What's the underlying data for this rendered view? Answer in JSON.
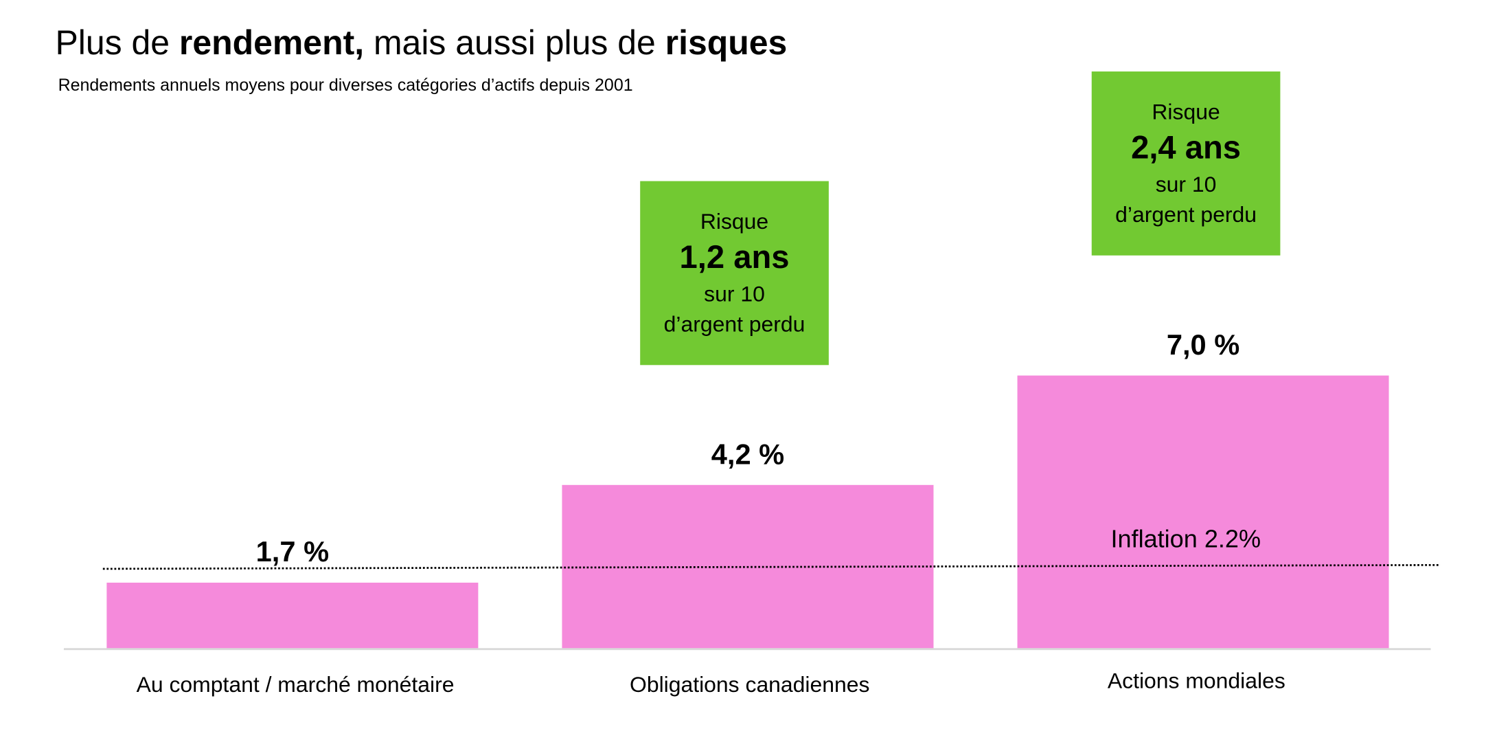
{
  "chart_data": {
    "type": "bar",
    "title_parts": [
      {
        "text": "Plus de ",
        "bold": false
      },
      {
        "text": "rendement,",
        "bold": true
      },
      {
        "text": " mais aussi plus de ",
        "bold": false
      },
      {
        "text": "risques",
        "bold": true
      }
    ],
    "subtitle": "Rendements annuels moyens pour diverses catégories d’actifs depuis 2001",
    "categories": [
      "Au comptant / marché monétaire",
      "Obligations canadiennes",
      "Actions mondiales"
    ],
    "values": [
      1.7,
      4.2,
      7.0
    ],
    "value_labels": [
      "1,7 %",
      "4,2 %",
      "7,0 %"
    ],
    "ylim": [
      0,
      8
    ],
    "grid": false,
    "reference_line": {
      "label": "Inflation 2.2%",
      "value": 2.2,
      "style": "dotted"
    },
    "risk_boxes": [
      {
        "category": "Obligations canadiennes",
        "line1": "Risque",
        "value": "1,2 ans",
        "line3": "sur 10",
        "line4": "d’argent perdu"
      },
      {
        "category": "Actions mondiales",
        "line1": "Risque",
        "value": "2,4 ans",
        "line3": "sur 10",
        "line4": "d’argent perdu"
      }
    ],
    "colors": {
      "bar": "#F58ADB",
      "risk_box": "#72C932",
      "axis": "#D9D9D9"
    }
  }
}
